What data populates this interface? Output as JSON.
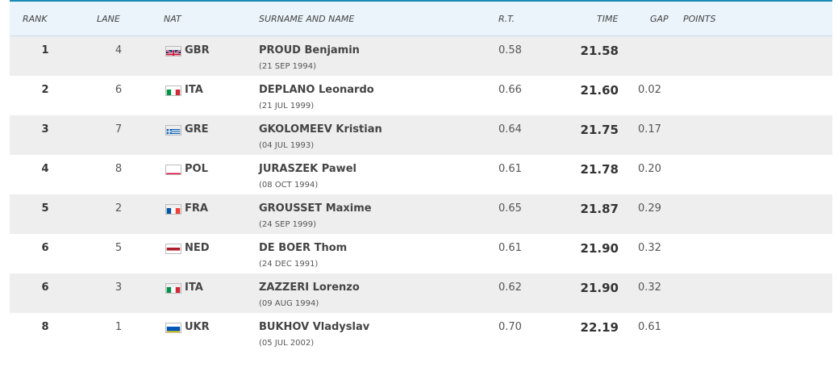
{
  "table": {
    "headers": {
      "rank": "RANK",
      "lane": "LANE",
      "nat": "NAT",
      "name": "SURNAME AND NAME",
      "rt": "R.T.",
      "time": "TIME",
      "gap": "GAP",
      "points": "POINTS"
    },
    "rows": [
      {
        "rank": "1",
        "lane": "4",
        "nat": "GBR",
        "flag": "flag-gbr-icon",
        "name": "PROUD Benjamin",
        "dob": "(21 SEP 1994)",
        "rt": "0.58",
        "time": "21.58",
        "gap": "",
        "points": ""
      },
      {
        "rank": "2",
        "lane": "6",
        "nat": "ITA",
        "flag": "flag-ita-icon",
        "name": "DEPLANO Leonardo",
        "dob": "(21 JUL 1999)",
        "rt": "0.66",
        "time": "21.60",
        "gap": "0.02",
        "points": ""
      },
      {
        "rank": "3",
        "lane": "7",
        "nat": "GRE",
        "flag": "flag-gre-icon",
        "name": "GKOLOMEEV Kristian",
        "dob": "(04 JUL 1993)",
        "rt": "0.64",
        "time": "21.75",
        "gap": "0.17",
        "points": ""
      },
      {
        "rank": "4",
        "lane": "8",
        "nat": "POL",
        "flag": "flag-pol-icon",
        "name": "JURASZEK Pawel",
        "dob": "(08 OCT 1994)",
        "rt": "0.61",
        "time": "21.78",
        "gap": "0.20",
        "points": ""
      },
      {
        "rank": "5",
        "lane": "2",
        "nat": "FRA",
        "flag": "flag-fra-icon",
        "name": "GROUSSET Maxime",
        "dob": "(24 SEP 1999)",
        "rt": "0.65",
        "time": "21.87",
        "gap": "0.29",
        "points": ""
      },
      {
        "rank": "6",
        "lane": "5",
        "nat": "NED",
        "flag": "flag-ned-icon",
        "name": "DE BOER Thom",
        "dob": "(24 DEC 1991)",
        "rt": "0.61",
        "time": "21.90",
        "gap": "0.32",
        "points": ""
      },
      {
        "rank": "6",
        "lane": "3",
        "nat": "ITA",
        "flag": "flag-ita-icon",
        "name": "ZAZZERI Lorenzo",
        "dob": "(09 AUG 1994)",
        "rt": "0.62",
        "time": "21.90",
        "gap": "0.32",
        "points": ""
      },
      {
        "rank": "8",
        "lane": "1",
        "nat": "UKR",
        "flag": "flag-ukr-icon",
        "name": "BUKHOV Vladyslav",
        "dob": "(05 JUL 2002)",
        "rt": "0.70",
        "time": "22.19",
        "gap": "0.61",
        "points": ""
      }
    ]
  },
  "colors": {
    "header_bg": "#eaf4fa",
    "accent_line": "#1a8bb3",
    "alt_row_bg": "#eeeeee"
  }
}
